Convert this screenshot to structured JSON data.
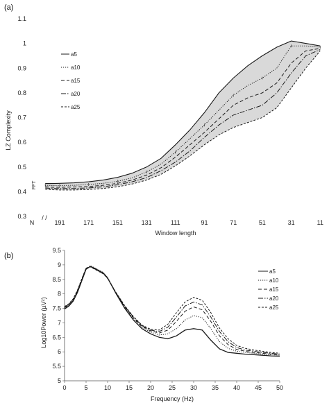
{
  "chart_data": [
    {
      "panel_label": "(a)",
      "type": "line",
      "xlabel": "Window length",
      "ylabel": "LZ Complexity",
      "x_categories": [
        "N",
        "191",
        "171",
        "151",
        "131",
        "111",
        "91",
        "71",
        "51",
        "31",
        "11"
      ],
      "x_break_label": "/ /",
      "ylim": [
        0.3,
        1.1
      ],
      "yticks": [
        "0.3",
        "0.4",
        "0.5",
        "0.6",
        "0.7",
        "0.8",
        "0.9",
        "1",
        "1.1"
      ],
      "fft_label": "FFT",
      "shaded_region": "between a5 and a25",
      "x": [
        201,
        196,
        191,
        181,
        171,
        161,
        151,
        141,
        131,
        121,
        111,
        101,
        91,
        81,
        71,
        61,
        51,
        41,
        31,
        21,
        11
      ],
      "series": [
        {
          "name": "a5",
          "style": "solid",
          "values": [
            0.433,
            0.433,
            0.434,
            0.436,
            0.44,
            0.447,
            0.458,
            0.475,
            0.5,
            0.535,
            0.59,
            0.65,
            0.72,
            0.8,
            0.86,
            0.91,
            0.95,
            0.985,
            1.01,
            1.0,
            0.99
          ]
        },
        {
          "name": "a10",
          "style": "dotted",
          "values": [
            0.426,
            0.425,
            0.425,
            0.426,
            0.429,
            0.434,
            0.442,
            0.456,
            0.48,
            0.512,
            0.56,
            0.615,
            0.67,
            0.73,
            0.79,
            0.83,
            0.86,
            0.9,
            0.99,
            0.99,
            0.985
          ]
        },
        {
          "name": "a15",
          "style": "dashed",
          "values": [
            0.42,
            0.418,
            0.418,
            0.419,
            0.421,
            0.426,
            0.434,
            0.447,
            0.467,
            0.497,
            0.54,
            0.59,
            0.64,
            0.695,
            0.75,
            0.78,
            0.8,
            0.84,
            0.92,
            0.97,
            0.98
          ]
        },
        {
          "name": "a20",
          "style": "dash-dot",
          "values": [
            0.415,
            0.413,
            0.413,
            0.413,
            0.415,
            0.42,
            0.428,
            0.44,
            0.457,
            0.485,
            0.52,
            0.565,
            0.62,
            0.67,
            0.71,
            0.73,
            0.75,
            0.8,
            0.88,
            0.95,
            0.975
          ]
        },
        {
          "name": "a25",
          "style": "short-dash",
          "values": [
            0.41,
            0.408,
            0.407,
            0.407,
            0.409,
            0.413,
            0.42,
            0.431,
            0.447,
            0.47,
            0.505,
            0.545,
            0.59,
            0.63,
            0.66,
            0.68,
            0.7,
            0.74,
            0.82,
            0.9,
            0.97
          ]
        }
      ]
    },
    {
      "panel_label": "(b)",
      "type": "line",
      "xlabel": "Frequency (Hz)",
      "ylabel": "Log10Power (µV²)",
      "xlim": [
        0,
        50
      ],
      "xticks": [
        "0",
        "5",
        "10",
        "15",
        "20",
        "25",
        "30",
        "35",
        "40",
        "45",
        "50"
      ],
      "ylim": [
        5,
        9.5
      ],
      "yticks": [
        "5",
        "5.5",
        "6",
        "6.5",
        "7",
        "7.5",
        "8",
        "8.5",
        "9",
        "9.5"
      ],
      "x": [
        0,
        1,
        2,
        3,
        4,
        5,
        6,
        7,
        8,
        9,
        10,
        12,
        14,
        16,
        18,
        20,
        22,
        24,
        26,
        28,
        30,
        32,
        34,
        36,
        38,
        40,
        42,
        44,
        46,
        48,
        50
      ],
      "series": [
        {
          "name": "a5",
          "style": "solid",
          "values": [
            7.48,
            7.58,
            7.75,
            8.05,
            8.45,
            8.85,
            8.95,
            8.88,
            8.8,
            8.72,
            8.55,
            8.0,
            7.5,
            7.1,
            6.8,
            6.62,
            6.5,
            6.45,
            6.55,
            6.75,
            6.8,
            6.75,
            6.4,
            6.1,
            5.98,
            5.95,
            5.92,
            5.9,
            5.88,
            5.86,
            5.85
          ]
        },
        {
          "name": "a10",
          "style": "dotted",
          "values": [
            7.5,
            7.6,
            7.77,
            8.07,
            8.47,
            8.87,
            8.97,
            8.9,
            8.82,
            8.74,
            8.57,
            8.02,
            7.53,
            7.15,
            6.85,
            6.68,
            6.58,
            6.62,
            6.8,
            7.1,
            7.25,
            7.18,
            6.8,
            6.35,
            6.12,
            6.02,
            5.98,
            5.95,
            5.92,
            5.9,
            5.88
          ]
        },
        {
          "name": "a15",
          "style": "dashed",
          "values": [
            7.52,
            7.62,
            7.79,
            8.09,
            8.49,
            8.88,
            8.95,
            8.88,
            8.8,
            8.72,
            8.55,
            8.02,
            7.55,
            7.18,
            6.88,
            6.72,
            6.65,
            6.75,
            7.05,
            7.4,
            7.55,
            7.45,
            7.05,
            6.55,
            6.25,
            6.08,
            6.02,
            5.98,
            5.95,
            5.92,
            5.9
          ]
        },
        {
          "name": "a20",
          "style": "dash-dot",
          "values": [
            7.54,
            7.64,
            7.81,
            8.11,
            8.5,
            8.88,
            8.94,
            8.86,
            8.78,
            8.7,
            8.54,
            8.03,
            7.57,
            7.2,
            6.9,
            6.75,
            6.7,
            6.85,
            7.2,
            7.58,
            7.72,
            7.62,
            7.2,
            6.7,
            6.35,
            6.15,
            6.06,
            6.02,
            5.98,
            5.95,
            5.92
          ]
        },
        {
          "name": "a25",
          "style": "short-dash",
          "values": [
            7.56,
            7.66,
            7.83,
            8.13,
            8.52,
            8.89,
            8.93,
            8.85,
            8.77,
            8.69,
            8.53,
            8.04,
            7.59,
            7.22,
            6.92,
            6.78,
            6.75,
            6.95,
            7.35,
            7.72,
            7.88,
            7.78,
            7.35,
            6.82,
            6.45,
            6.22,
            6.12,
            6.06,
            6.02,
            5.98,
            5.95
          ]
        }
      ]
    }
  ],
  "colors": {
    "line": "#1a1a1a",
    "shade": "#d9d9d9",
    "axis": "#555555"
  }
}
